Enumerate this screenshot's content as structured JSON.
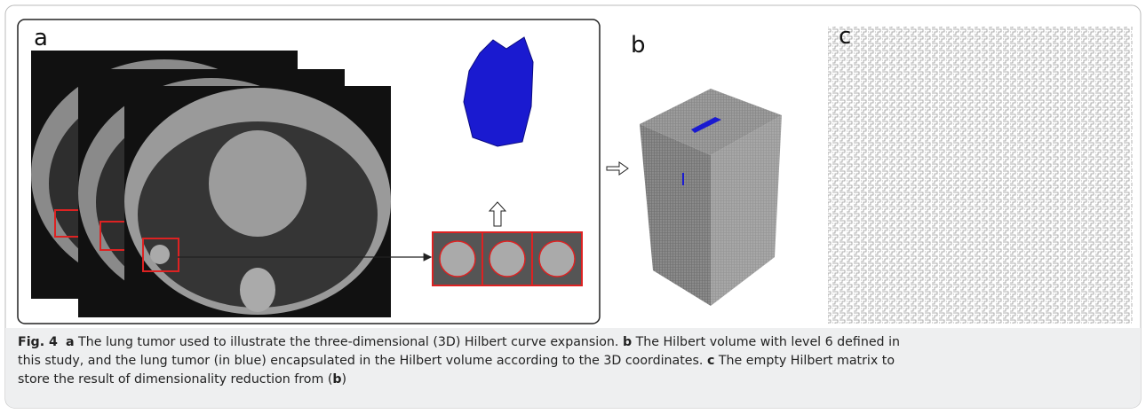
{
  "panels": [
    {
      "label": "a"
    },
    {
      "label": "b"
    },
    {
      "label": "c"
    }
  ],
  "caption": {
    "figure_label": "Fig. 4",
    "parts": [
      {
        "label": "a",
        "text": "The lung tumor used to illustrate the three-dimensional (3D) Hilbert curve expansion."
      },
      {
        "label": "b",
        "text": "The Hilbert volume with level 6 defined in this study, and the lung tumor (in blue) encapsulated in the Hilbert volume according to the 3D coordinates."
      },
      {
        "label": "c",
        "text": "The empty Hilbert matrix to store the result of dimensionality reduction from (",
        "ref": "b",
        "after": ")"
      }
    ]
  }
}
